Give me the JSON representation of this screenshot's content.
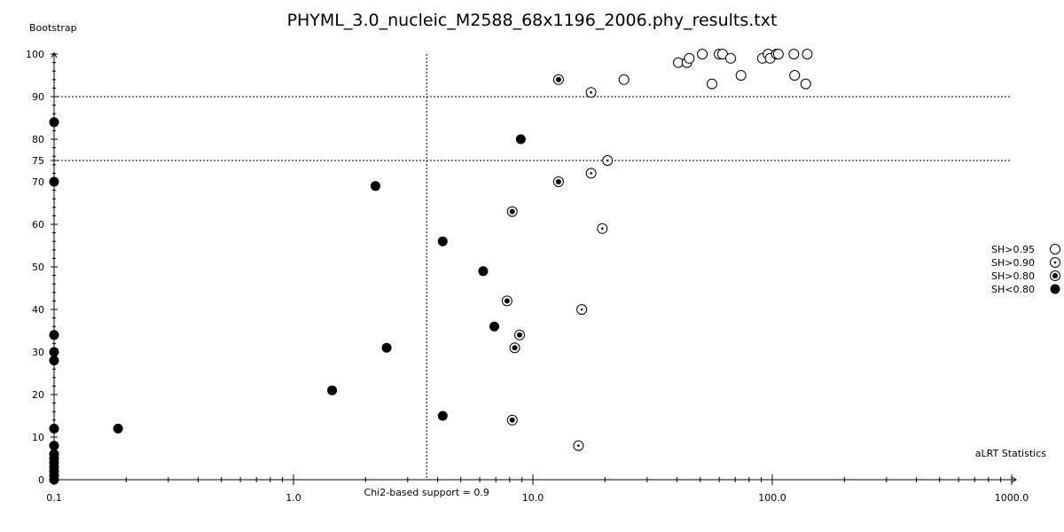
{
  "chart_data": {
    "type": "scatter",
    "title": "PHYML_3.0_nucleic_M2588_68x1196_2006.phy_results.txt",
    "xlabel": "aLRT Statistics",
    "ylabel": "Bootstrap",
    "x_scale": "log",
    "xlim": [
      0.1,
      1000.0
    ],
    "ylim": [
      0,
      100
    ],
    "x_ticks": [
      {
        "value": 0.1,
        "label": "0.1"
      },
      {
        "value": 1.0,
        "label": "1.0"
      },
      {
        "value": 10.0,
        "label": "10.0"
      },
      {
        "value": 100.0,
        "label": "100.0"
      },
      {
        "value": 1000.0,
        "label": "1000.0"
      }
    ],
    "y_ticks": [
      {
        "value": 0,
        "label": "0"
      },
      {
        "value": 10,
        "label": "10"
      },
      {
        "value": 20,
        "label": "20"
      },
      {
        "value": 30,
        "label": "30"
      },
      {
        "value": 40,
        "label": "40"
      },
      {
        "value": 50,
        "label": "50"
      },
      {
        "value": 60,
        "label": "60"
      },
      {
        "value": 70,
        "label": "70"
      },
      {
        "value": 75,
        "label": "75"
      },
      {
        "value": 80,
        "label": "80"
      },
      {
        "value": 90,
        "label": "90"
      },
      {
        "value": 100,
        "label": "100"
      }
    ],
    "reference_lines": {
      "horizontal": [
        90,
        75
      ],
      "vertical": [
        {
          "value": 3.6,
          "label": "Chi2-based support = 0.9"
        }
      ]
    },
    "legend_position": "right",
    "series": [
      {
        "name": "SH>0.95",
        "marker": "open-circle",
        "points": [
          {
            "x": 24.0,
            "y": 94
          },
          {
            "x": 40.5,
            "y": 98
          },
          {
            "x": 44.0,
            "y": 98
          },
          {
            "x": 45.0,
            "y": 99
          },
          {
            "x": 51.0,
            "y": 100
          },
          {
            "x": 56.0,
            "y": 93
          },
          {
            "x": 60.0,
            "y": 100
          },
          {
            "x": 62.0,
            "y": 100
          },
          {
            "x": 67.0,
            "y": 99
          },
          {
            "x": 74.0,
            "y": 95
          },
          {
            "x": 91.0,
            "y": 99
          },
          {
            "x": 96.0,
            "y": 100
          },
          {
            "x": 98.0,
            "y": 99
          },
          {
            "x": 104.0,
            "y": 100
          },
          {
            "x": 106.0,
            "y": 100
          },
          {
            "x": 123.0,
            "y": 100
          },
          {
            "x": 124.0,
            "y": 95
          },
          {
            "x": 138.0,
            "y": 93
          },
          {
            "x": 140.0,
            "y": 100
          }
        ]
      },
      {
        "name": "SH>0.90",
        "marker": "dot-circle",
        "points": [
          {
            "x": 17.5,
            "y": 91
          },
          {
            "x": 20.5,
            "y": 75
          },
          {
            "x": 17.5,
            "y": 72
          },
          {
            "x": 19.5,
            "y": 59
          },
          {
            "x": 16.0,
            "y": 40
          },
          {
            "x": 15.5,
            "y": 8
          }
        ]
      },
      {
        "name": "SH>0.80",
        "marker": "bullseye",
        "points": [
          {
            "x": 12.8,
            "y": 94
          },
          {
            "x": 12.8,
            "y": 70
          },
          {
            "x": 8.2,
            "y": 63
          },
          {
            "x": 7.8,
            "y": 42
          },
          {
            "x": 8.8,
            "y": 34
          },
          {
            "x": 8.4,
            "y": 31
          },
          {
            "x": 8.2,
            "y": 14
          }
        ]
      },
      {
        "name": "SH<0.80",
        "marker": "filled-circle",
        "points": [
          {
            "x": 0.1,
            "y": 84
          },
          {
            "x": 0.1,
            "y": 70
          },
          {
            "x": 0.1,
            "y": 34
          },
          {
            "x": 0.1,
            "y": 30
          },
          {
            "x": 0.1,
            "y": 28
          },
          {
            "x": 0.1,
            "y": 12
          },
          {
            "x": 0.1,
            "y": 8
          },
          {
            "x": 0.1,
            "y": 6
          },
          {
            "x": 0.1,
            "y": 5
          },
          {
            "x": 0.1,
            "y": 4
          },
          {
            "x": 0.1,
            "y": 3
          },
          {
            "x": 0.1,
            "y": 2
          },
          {
            "x": 0.1,
            "y": 1
          },
          {
            "x": 0.1,
            "y": 0
          },
          {
            "x": 0.185,
            "y": 12
          },
          {
            "x": 1.45,
            "y": 21
          },
          {
            "x": 2.2,
            "y": 69
          },
          {
            "x": 2.45,
            "y": 31
          },
          {
            "x": 4.2,
            "y": 56
          },
          {
            "x": 4.2,
            "y": 15
          },
          {
            "x": 6.2,
            "y": 49
          },
          {
            "x": 6.9,
            "y": 36
          },
          {
            "x": 8.9,
            "y": 80
          }
        ]
      }
    ]
  }
}
